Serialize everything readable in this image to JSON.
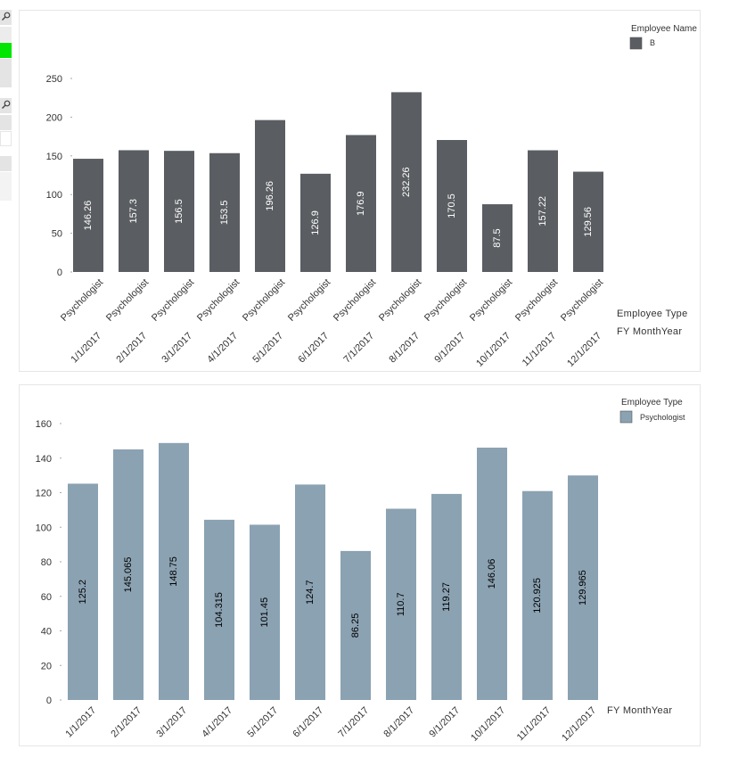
{
  "chart_data": [
    {
      "type": "bar",
      "categories": [
        "1/1/2017",
        "2/1/2017",
        "3/1/2017",
        "4/1/2017",
        "5/1/2017",
        "6/1/2017",
        "7/1/2017",
        "8/1/2017",
        "9/1/2017",
        "10/1/2017",
        "11/1/2017",
        "12/1/2017"
      ],
      "inner_categories": [
        "Psychologist",
        "Psychologist",
        "Psychologist",
        "Psychologist",
        "Psychologist",
        "Psychologist",
        "Psychologist",
        "Psychologist",
        "Psychologist",
        "Psychologist",
        "Psychologist",
        "Psychologist"
      ],
      "series": [
        {
          "name": "B",
          "values": [
            146.26,
            157.3,
            156.5,
            153.5,
            196.26,
            126.9,
            176.9,
            232.26,
            170.5,
            87.5,
            157.22,
            129.56
          ],
          "color": "#5a5d61"
        }
      ],
      "data_labels": [
        "146.26",
        "157.3",
        "156.5",
        "153.5",
        "196.26",
        "126.9",
        "176.9",
        "232.26",
        "170.5",
        "87.5",
        "157.22",
        "129.56"
      ],
      "ylim": [
        0,
        250
      ],
      "yticks": [
        0,
        50,
        100,
        150,
        200,
        250
      ],
      "legend_title": "Employee Name",
      "legend_placement": "top-right",
      "axis_titles": [
        "Employee Type",
        "FY MonthYear"
      ],
      "label_color": "#ffffff",
      "grid": false
    },
    {
      "type": "bar",
      "categories": [
        "1/1/2017",
        "2/1/2017",
        "3/1/2017",
        "4/1/2017",
        "5/1/2017",
        "6/1/2017",
        "7/1/2017",
        "8/1/2017",
        "9/1/2017",
        "10/1/2017",
        "11/1/2017",
        "12/1/2017"
      ],
      "series": [
        {
          "name": "Psychologist",
          "values": [
            125.2,
            145.065,
            148.75,
            104.315,
            101.45,
            124.7,
            86.25,
            110.7,
            119.27,
            146.06,
            120.925,
            129.965
          ],
          "color": "#8ba2b2"
        }
      ],
      "data_labels": [
        "125.2",
        "145.065",
        "148.75",
        "104.315",
        "101.45",
        "124.7",
        "86.25",
        "110.7",
        "119.27",
        "146.06",
        "120.925",
        "129.965"
      ],
      "ylim": [
        0,
        160
      ],
      "yticks": [
        0,
        20,
        40,
        60,
        80,
        100,
        120,
        140,
        160
      ],
      "legend_title": "Employee Type",
      "legend_placement": "top-right",
      "axis_titles": [
        "FY MonthYear"
      ],
      "label_color": "#000000",
      "grid": false
    }
  ],
  "sidebar_colors": {
    "gray": "#e4e4e4",
    "green": "#00e600",
    "white": "#ffffff"
  }
}
